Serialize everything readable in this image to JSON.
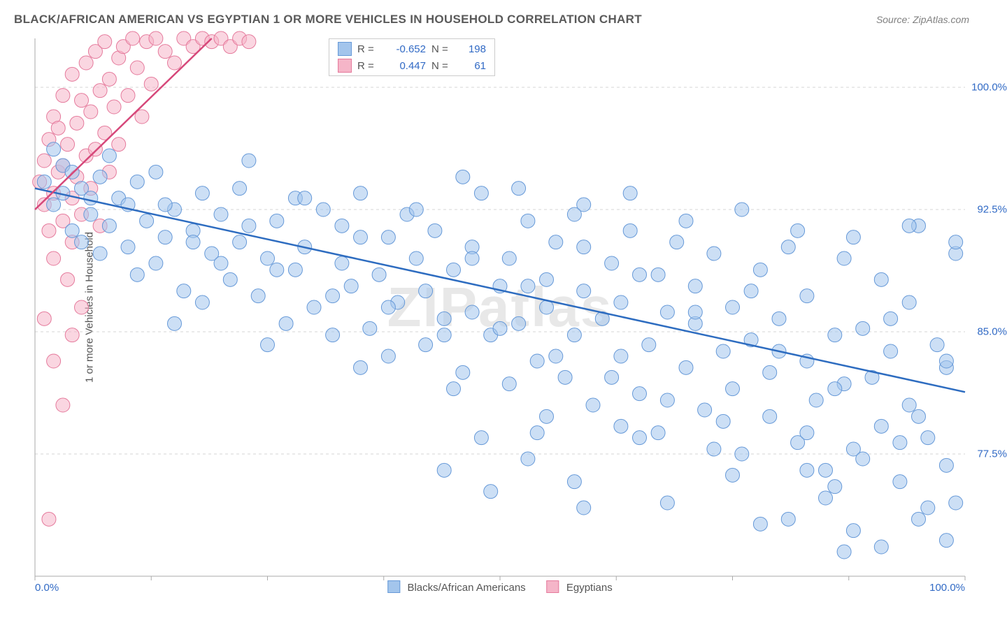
{
  "title": "BLACK/AFRICAN AMERICAN VS EGYPTIAN 1 OR MORE VEHICLES IN HOUSEHOLD CORRELATION CHART",
  "source": "Source: ZipAtlas.com",
  "watermark": "ZIPatlas",
  "chart": {
    "type": "scatter",
    "ylabel": "1 or more Vehicles in Household",
    "xlim": [
      0,
      100
    ],
    "ylim": [
      70,
      103
    ],
    "yticks": [
      77.5,
      85.0,
      92.5,
      100.0
    ],
    "ytick_labels": [
      "77.5%",
      "85.0%",
      "92.5%",
      "100.0%"
    ],
    "xtick_positions": [
      0,
      12.5,
      25,
      37.5,
      50,
      62.5,
      75,
      87.5,
      100
    ],
    "xaxis_end_labels": [
      "0.0%",
      "100.0%"
    ],
    "background_color": "#ffffff",
    "grid_color": "#d5d5d5",
    "axis_color": "#aaaaaa",
    "marker_radius": 10,
    "line_width": 2.5,
    "series": [
      {
        "name": "Blacks/African Americans",
        "fill_color": "#a3c5ec",
        "stroke_color": "#6699d8",
        "fill_opacity": 0.55,
        "line_color": "#2d6cc0",
        "R": "-0.652",
        "N": "198",
        "fit_line": {
          "x1": 0,
          "y1": 93.8,
          "x2": 100,
          "y2": 81.3
        },
        "points": [
          [
            1,
            94.2
          ],
          [
            2,
            92.8
          ],
          [
            3,
            93.5
          ],
          [
            3,
            95.2
          ],
          [
            4,
            91.2
          ],
          [
            5,
            93.8
          ],
          [
            5,
            90.5
          ],
          [
            6,
            92.2
          ],
          [
            7,
            94.5
          ],
          [
            7,
            89.8
          ],
          [
            8,
            91.5
          ],
          [
            9,
            93.2
          ],
          [
            10,
            90.2
          ],
          [
            10,
            92.8
          ],
          [
            11,
            88.5
          ],
          [
            12,
            91.8
          ],
          [
            13,
            94.8
          ],
          [
            13,
            89.2
          ],
          [
            14,
            90.8
          ],
          [
            15,
            92.5
          ],
          [
            16,
            87.5
          ],
          [
            17,
            91.2
          ],
          [
            18,
            93.5
          ],
          [
            18,
            86.8
          ],
          [
            19,
            89.8
          ],
          [
            20,
            92.2
          ],
          [
            21,
            88.2
          ],
          [
            22,
            90.5
          ],
          [
            22,
            93.8
          ],
          [
            23,
            95.5
          ],
          [
            24,
            87.2
          ],
          [
            25,
            89.5
          ],
          [
            26,
            91.8
          ],
          [
            27,
            85.5
          ],
          [
            28,
            88.8
          ],
          [
            28,
            93.2
          ],
          [
            29,
            90.2
          ],
          [
            30,
            86.5
          ],
          [
            31,
            92.5
          ],
          [
            32,
            84.8
          ],
          [
            33,
            89.2
          ],
          [
            33,
            91.5
          ],
          [
            34,
            87.8
          ],
          [
            35,
            93.5
          ],
          [
            36,
            85.2
          ],
          [
            37,
            88.5
          ],
          [
            38,
            90.8
          ],
          [
            38,
            83.5
          ],
          [
            39,
            86.8
          ],
          [
            40,
            92.2
          ],
          [
            41,
            89.5
          ],
          [
            42,
            84.2
          ],
          [
            42,
            87.5
          ],
          [
            43,
            91.2
          ],
          [
            44,
            85.8
          ],
          [
            45,
            88.8
          ],
          [
            46,
            82.5
          ],
          [
            47,
            90.2
          ],
          [
            47,
            86.2
          ],
          [
            48,
            93.5
          ],
          [
            49,
            84.8
          ],
          [
            50,
            87.8
          ],
          [
            51,
            89.5
          ],
          [
            51,
            81.8
          ],
          [
            52,
            85.5
          ],
          [
            53,
            91.8
          ],
          [
            54,
            83.2
          ],
          [
            55,
            88.2
          ],
          [
            55,
            86.5
          ],
          [
            56,
            90.5
          ],
          [
            57,
            82.2
          ],
          [
            58,
            84.8
          ],
          [
            59,
            87.5
          ],
          [
            59,
            92.8
          ],
          [
            60,
            80.5
          ],
          [
            61,
            85.8
          ],
          [
            62,
            89.2
          ],
          [
            63,
            83.5
          ],
          [
            63,
            86.8
          ],
          [
            64,
            91.2
          ],
          [
            65,
            81.2
          ],
          [
            66,
            84.2
          ],
          [
            67,
            88.5
          ],
          [
            67,
            78.8
          ],
          [
            68,
            86.2
          ],
          [
            69,
            90.5
          ],
          [
            70,
            82.8
          ],
          [
            71,
            85.5
          ],
          [
            71,
            87.8
          ],
          [
            72,
            80.2
          ],
          [
            73,
            89.8
          ],
          [
            74,
            83.8
          ],
          [
            75,
            81.5
          ],
          [
            75,
            86.5
          ],
          [
            76,
            77.5
          ],
          [
            77,
            84.5
          ],
          [
            78,
            88.8
          ],
          [
            79,
            79.8
          ],
          [
            79,
            82.5
          ],
          [
            80,
            85.8
          ],
          [
            81,
            90.2
          ],
          [
            82,
            78.2
          ],
          [
            83,
            83.2
          ],
          [
            83,
            87.2
          ],
          [
            84,
            80.8
          ],
          [
            85,
            76.5
          ],
          [
            86,
            84.8
          ],
          [
            87,
            89.5
          ],
          [
            87,
            81.8
          ],
          [
            88,
            77.8
          ],
          [
            89,
            85.2
          ],
          [
            90,
            82.2
          ],
          [
            91,
            79.2
          ],
          [
            91,
            88.2
          ],
          [
            92,
            83.8
          ],
          [
            93,
            75.8
          ],
          [
            94,
            80.5
          ],
          [
            94,
            86.8
          ],
          [
            95,
            91.5
          ],
          [
            96,
            78.5
          ],
          [
            97,
            84.2
          ],
          [
            98,
            76.8
          ],
          [
            98,
            82.8
          ],
          [
            99,
            89.8
          ],
          [
            99,
            74.5
          ],
          [
            2,
            96.2
          ],
          [
            4,
            94.8
          ],
          [
            6,
            93.2
          ],
          [
            8,
            95.8
          ],
          [
            11,
            94.2
          ],
          [
            14,
            92.8
          ],
          [
            17,
            90.5
          ],
          [
            20,
            89.2
          ],
          [
            23,
            91.5
          ],
          [
            26,
            88.8
          ],
          [
            29,
            93.2
          ],
          [
            32,
            87.2
          ],
          [
            35,
            90.8
          ],
          [
            38,
            86.5
          ],
          [
            41,
            92.5
          ],
          [
            44,
            84.8
          ],
          [
            47,
            89.5
          ],
          [
            50,
            85.2
          ],
          [
            53,
            87.8
          ],
          [
            56,
            83.5
          ],
          [
            59,
            90.2
          ],
          [
            62,
            82.2
          ],
          [
            65,
            88.5
          ],
          [
            68,
            80.8
          ],
          [
            71,
            86.2
          ],
          [
            74,
            79.5
          ],
          [
            77,
            87.5
          ],
          [
            80,
            83.8
          ],
          [
            83,
            78.8
          ],
          [
            86,
            81.5
          ],
          [
            89,
            77.2
          ],
          [
            92,
            85.8
          ],
          [
            95,
            79.8
          ],
          [
            98,
            83.2
          ],
          [
            46,
            94.5
          ],
          [
            52,
            93.8
          ],
          [
            58,
            92.2
          ],
          [
            64,
            93.5
          ],
          [
            70,
            91.8
          ],
          [
            76,
            92.5
          ],
          [
            82,
            91.2
          ],
          [
            88,
            90.8
          ],
          [
            94,
            91.5
          ],
          [
            99,
            90.5
          ],
          [
            15,
            85.5
          ],
          [
            25,
            84.2
          ],
          [
            35,
            82.8
          ],
          [
            45,
            81.5
          ],
          [
            55,
            79.8
          ],
          [
            65,
            78.5
          ],
          [
            75,
            76.2
          ],
          [
            85,
            74.8
          ],
          [
            95,
            73.5
          ],
          [
            48,
            78.5
          ],
          [
            53,
            77.2
          ],
          [
            58,
            75.8
          ],
          [
            63,
            79.2
          ],
          [
            68,
            74.5
          ],
          [
            73,
            77.8
          ],
          [
            78,
            73.2
          ],
          [
            83,
            76.5
          ],
          [
            88,
            72.8
          ],
          [
            93,
            78.2
          ],
          [
            98,
            72.2
          ],
          [
            87,
            71.5
          ],
          [
            44,
            76.5
          ],
          [
            49,
            75.2
          ],
          [
            54,
            78.8
          ],
          [
            59,
            74.2
          ],
          [
            81,
            73.5
          ],
          [
            86,
            75.5
          ],
          [
            91,
            71.8
          ],
          [
            96,
            74.2
          ]
        ]
      },
      {
        "name": "Egyptians",
        "fill_color": "#f5b5c8",
        "stroke_color": "#e57a9c",
        "fill_opacity": 0.55,
        "line_color": "#d6487a",
        "R": "0.447",
        "N": "61",
        "fit_line": {
          "x1": 0,
          "y1": 92.5,
          "x2": 19,
          "y2": 103
        },
        "points": [
          [
            0.5,
            94.2
          ],
          [
            1,
            92.8
          ],
          [
            1,
            95.5
          ],
          [
            1.5,
            91.2
          ],
          [
            1.5,
            96.8
          ],
          [
            2,
            93.5
          ],
          [
            2,
            98.2
          ],
          [
            2,
            89.5
          ],
          [
            2.5,
            94.8
          ],
          [
            2.5,
            97.5
          ],
          [
            3,
            91.8
          ],
          [
            3,
            95.2
          ],
          [
            3,
            99.5
          ],
          [
            3.5,
            88.2
          ],
          [
            3.5,
            96.5
          ],
          [
            4,
            93.2
          ],
          [
            4,
            100.8
          ],
          [
            4,
            90.5
          ],
          [
            4.5,
            97.8
          ],
          [
            4.5,
            94.5
          ],
          [
            5,
            99.2
          ],
          [
            5,
            92.2
          ],
          [
            5,
            86.5
          ],
          [
            5.5,
            95.8
          ],
          [
            5.5,
            101.5
          ],
          [
            6,
            98.5
          ],
          [
            6,
            93.8
          ],
          [
            6.5,
            96.2
          ],
          [
            6.5,
            102.2
          ],
          [
            7,
            99.8
          ],
          [
            7,
            91.5
          ],
          [
            7.5,
            97.2
          ],
          [
            7.5,
            102.8
          ],
          [
            8,
            100.5
          ],
          [
            8,
            94.8
          ],
          [
            8.5,
            98.8
          ],
          [
            9,
            101.8
          ],
          [
            9,
            96.5
          ],
          [
            9.5,
            102.5
          ],
          [
            10,
            99.5
          ],
          [
            10.5,
            103
          ],
          [
            11,
            101.2
          ],
          [
            11.5,
            98.2
          ],
          [
            12,
            102.8
          ],
          [
            12.5,
            100.2
          ],
          [
            13,
            103
          ],
          [
            14,
            102.2
          ],
          [
            15,
            101.5
          ],
          [
            16,
            103
          ],
          [
            17,
            102.5
          ],
          [
            18,
            103
          ],
          [
            19,
            102.8
          ],
          [
            20,
            103
          ],
          [
            21,
            102.5
          ],
          [
            22,
            103
          ],
          [
            23,
            102.8
          ],
          [
            1,
            85.8
          ],
          [
            2,
            83.2
          ],
          [
            3,
            80.5
          ],
          [
            1.5,
            73.5
          ],
          [
            4,
            84.8
          ]
        ]
      }
    ],
    "legend_bottom": [
      {
        "label": "Blacks/African Americans",
        "fill": "#a3c5ec",
        "stroke": "#6699d8"
      },
      {
        "label": "Egyptians",
        "fill": "#f5b5c8",
        "stroke": "#e57a9c"
      }
    ]
  }
}
